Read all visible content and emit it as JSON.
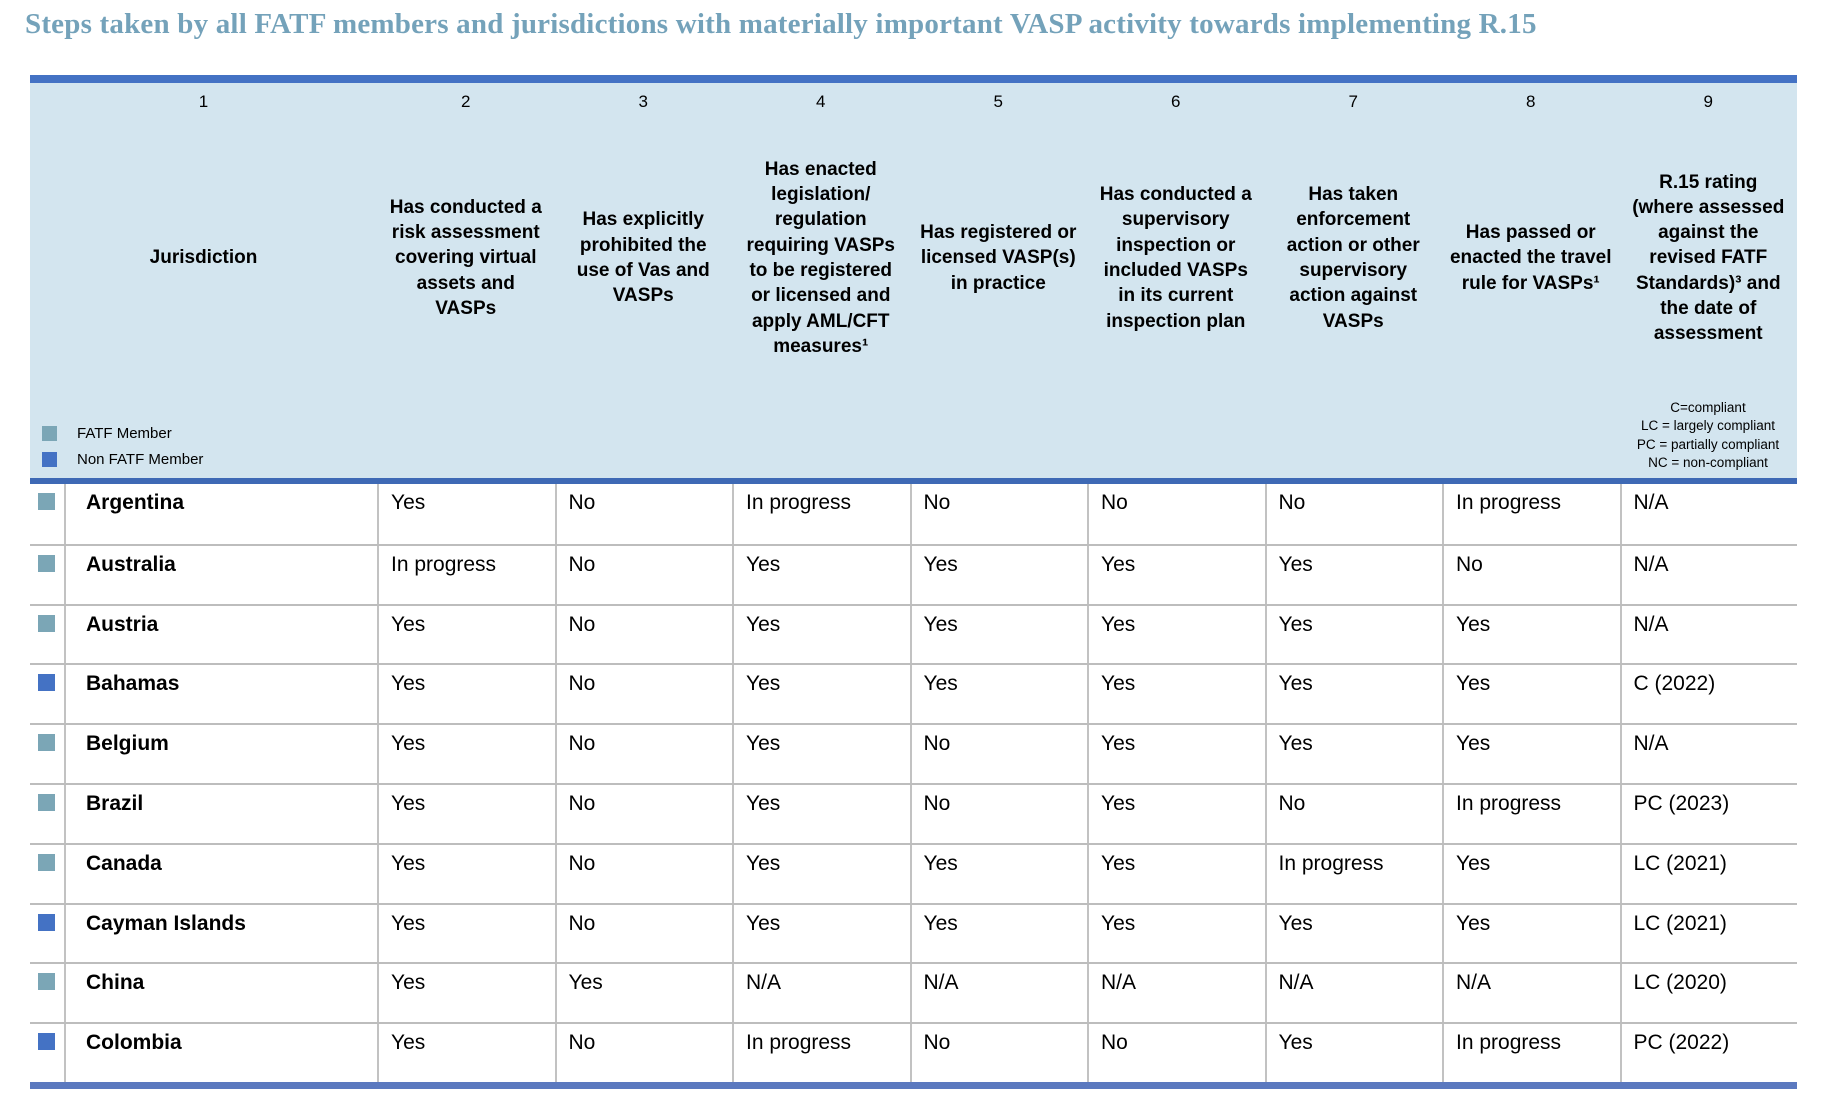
{
  "title": "Steps taken by all FATF members and jurisdictions with materially important VASP activity towards implementing R.15",
  "colors": {
    "accent_blue": "#4472c4",
    "header_background": "#d3e5ef",
    "fatf_member_marker": "#7ba6b6",
    "non_fatf_member_marker": "#4472c4",
    "title_text": "#74a2ba",
    "grid_line": "#c2c2c2",
    "bottom_bar": "#5b79bf"
  },
  "table": {
    "column_numbers": [
      "1",
      "2",
      "3",
      "4",
      "5",
      "6",
      "7",
      "8",
      "9"
    ],
    "columns": [
      "Jurisdiction",
      "Has conducted a risk assessment covering virtual assets and VASPs",
      "Has explicitly prohibited the use of Vas and VASPs",
      "Has enacted legislation/ regulation requiring VASPs to be registered or licensed and apply AML/CFT measures¹",
      "Has registered or licensed VASP(s) in practice",
      "Has conducted a supervisory inspection or included VASPs in its current inspection plan",
      "Has taken enforcement action or other supervisory action against VASPs",
      "Has passed or enacted the travel rule for VASPs¹",
      "R.15 rating (where assessed against the revised FATF Standards)³ and the date of assessment"
    ],
    "legend": [
      {
        "label": "FATF Member",
        "member": "fatf"
      },
      {
        "label": "Non FATF Member",
        "member": "non-fatf"
      }
    ],
    "rating_key": [
      "C=compliant",
      "LC = largely compliant",
      "PC = partially compliant",
      "NC = non-compliant"
    ],
    "rows": [
      {
        "jurisdiction": "Argentina",
        "member": "fatf",
        "values": [
          "Yes",
          "No",
          "In progress",
          "No",
          "No",
          "No",
          "In progress",
          "N/A"
        ]
      },
      {
        "jurisdiction": "Australia",
        "member": "fatf",
        "values": [
          "In progress",
          "No",
          "Yes",
          "Yes",
          "Yes",
          "Yes",
          "No",
          "N/A"
        ]
      },
      {
        "jurisdiction": "Austria",
        "member": "fatf",
        "values": [
          "Yes",
          "No",
          "Yes",
          "Yes",
          "Yes",
          "Yes",
          "Yes",
          "N/A"
        ]
      },
      {
        "jurisdiction": "Bahamas",
        "member": "non-fatf",
        "values": [
          "Yes",
          "No",
          "Yes",
          "Yes",
          "Yes",
          "Yes",
          "Yes",
          "C (2022)"
        ]
      },
      {
        "jurisdiction": "Belgium",
        "member": "fatf",
        "values": [
          "Yes",
          "No",
          "Yes",
          "No",
          "Yes",
          "Yes",
          "Yes",
          "N/A"
        ]
      },
      {
        "jurisdiction": "Brazil",
        "member": "fatf",
        "values": [
          "Yes",
          "No",
          "Yes",
          "No",
          "Yes",
          "No",
          "In progress",
          "PC (2023)"
        ]
      },
      {
        "jurisdiction": "Canada",
        "member": "fatf",
        "values": [
          "Yes",
          "No",
          "Yes",
          "Yes",
          "Yes",
          "In progress",
          "Yes",
          "LC (2021)"
        ]
      },
      {
        "jurisdiction": "Cayman Islands",
        "member": "non-fatf",
        "values": [
          "Yes",
          "No",
          "Yes",
          "Yes",
          "Yes",
          "Yes",
          "Yes",
          "LC (2021)"
        ]
      },
      {
        "jurisdiction": "China",
        "member": "fatf",
        "values": [
          "Yes",
          "Yes",
          "N/A",
          "N/A",
          "N/A",
          "N/A",
          "N/A",
          "LC (2020)"
        ]
      },
      {
        "jurisdiction": "Colombia",
        "member": "non-fatf",
        "values": [
          "Yes",
          "No",
          "In progress",
          "No",
          "No",
          "Yes",
          "In progress",
          "PC (2022)"
        ]
      }
    ]
  }
}
